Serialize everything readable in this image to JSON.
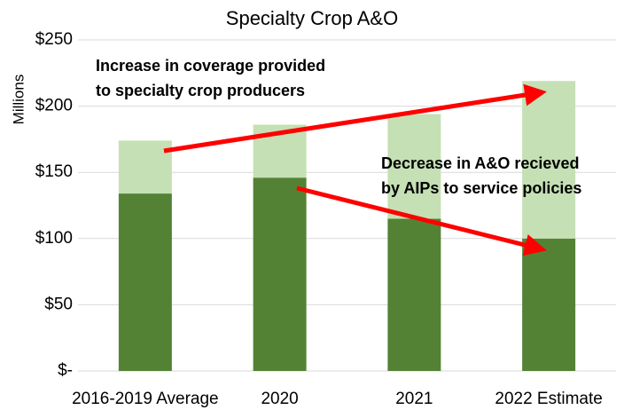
{
  "chart_data": {
    "type": "stacked_bar",
    "title": "Specialty Crop A&O",
    "y_label": "Millions",
    "categories": [
      "2016-2019 Average",
      "2020",
      "2021",
      "2022 Estimate"
    ],
    "series": [
      {
        "color": "#548235",
        "values": [
          134,
          146,
          115,
          100
        ]
      },
      {
        "color": "#c5e0b4",
        "values": [
          40,
          40,
          79,
          119
        ]
      }
    ],
    "ylim": [
      0,
      250
    ],
    "yticks": [
      {
        "value": 0,
        "label": "$-"
      },
      {
        "value": 50,
        "label": "$50"
      },
      {
        "value": 100,
        "label": "$100"
      },
      {
        "value": 150,
        "label": "$150"
      },
      {
        "value": 200,
        "label": "$200"
      },
      {
        "value": 250,
        "label": "$250"
      }
    ],
    "grid": true,
    "annotations": [
      [
        "Increase in coverage provided",
        "to specialty crop producers"
      ],
      [
        "Decrease in A&O recieved",
        "by AIPs to service policies"
      ]
    ]
  }
}
